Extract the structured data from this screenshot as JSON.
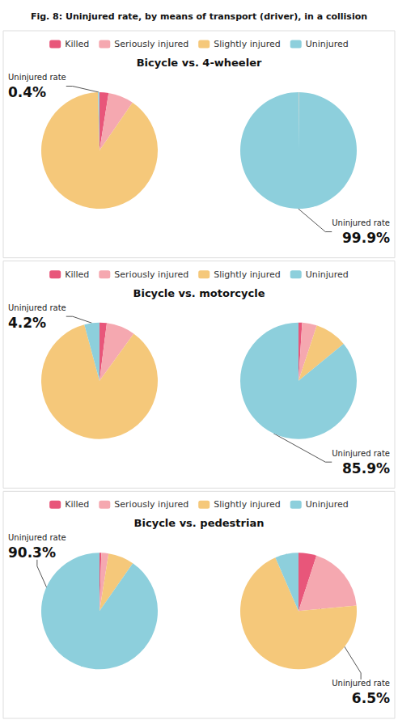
{
  "chart_data": {
    "type": "pie",
    "title": "Fig. 8: Uninjured rate, by means of transport (driver), in a collision",
    "categories": [
      "Killed",
      "Seriously injured",
      "Slightly injured",
      "Uninjured"
    ],
    "colors": [
      "#e8567a",
      "#f5a8b0",
      "#f5c87a",
      "#8dcfdc"
    ],
    "legend": "top",
    "panels": [
      {
        "title": "Bicycle vs. 4-wheeler",
        "pies": [
          {
            "values": [
              2.5,
              7.1,
              90.0,
              0.4
            ],
            "value_labels": [
              null,
              null,
              null,
              "0.4%"
            ],
            "annotation": "Uninjured rate"
          },
          {
            "values": [
              0.04,
              0.03,
              0.06,
              99.87
            ],
            "value_labels": [
              null,
              null,
              null,
              "99.9%"
            ],
            "annotation": "Uninjured rate"
          }
        ]
      },
      {
        "title": "Bicycle vs. motorcycle",
        "pies": [
          {
            "values": [
              2.0,
              8.0,
              85.8,
              4.2
            ],
            "value_labels": [
              null,
              null,
              null,
              "4.2%"
            ],
            "annotation": "Uninjured rate"
          },
          {
            "values": [
              1.0,
              4.1,
              9.0,
              85.9
            ],
            "value_labels": [
              null,
              null,
              null,
              "85.9%"
            ],
            "annotation": "Uninjured rate"
          }
        ]
      },
      {
        "title": "Bicycle vs. pedestrian",
        "pies": [
          {
            "values": [
              0.5,
              2.0,
              7.2,
              90.3
            ],
            "value_labels": [
              null,
              null,
              null,
              "90.3%"
            ],
            "annotation": "Uninjured rate"
          },
          {
            "values": [
              5.0,
              18.5,
              70.0,
              6.5
            ],
            "value_labels": [
              null,
              null,
              null,
              "6.5%"
            ],
            "annotation": "Uninjured rate"
          }
        ]
      }
    ]
  }
}
